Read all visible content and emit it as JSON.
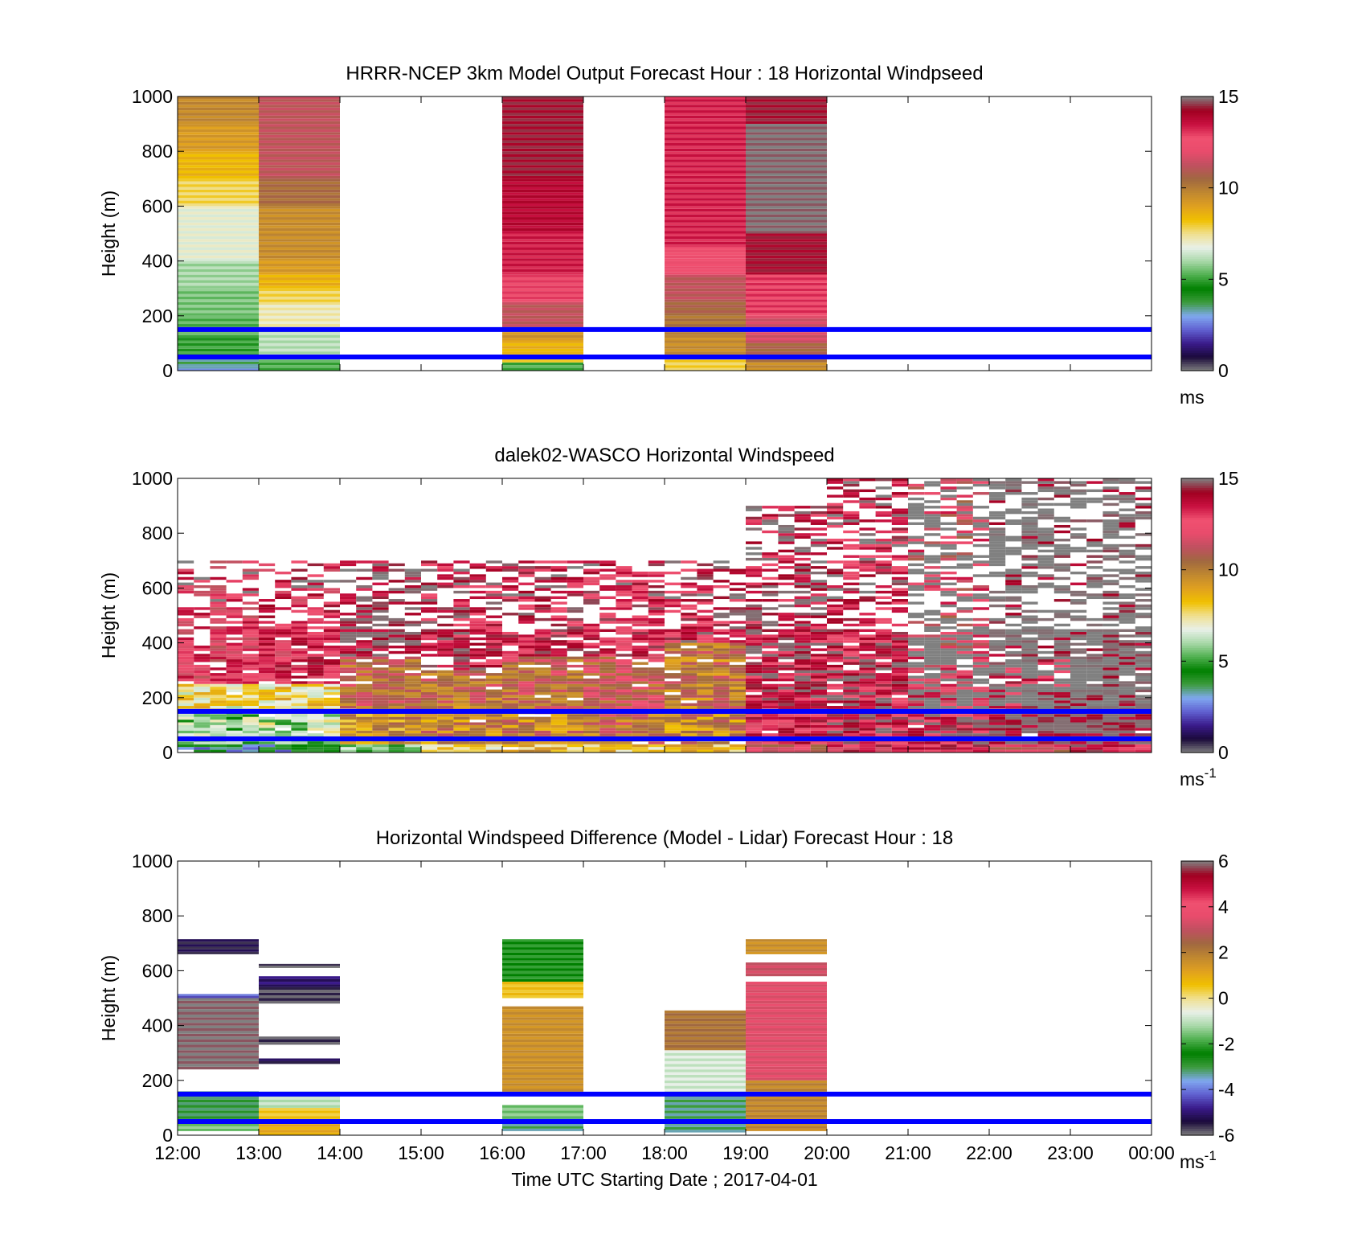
{
  "colors": {
    "reference_line": "#0000ff",
    "speed_colormap": [
      "#808080",
      "#1a0a3a",
      "#3a1a8a",
      "#6060d0",
      "#80a8f0",
      "#3c9b3c",
      "#008000",
      "#50b050",
      "#a8d8a8",
      "#e8f0e8",
      "#f0e090",
      "#f0c000",
      "#e0a020",
      "#c08830",
      "#a06840",
      "#c05060",
      "#e84c6c",
      "#f05070",
      "#c81040",
      "#a00020",
      "#808080"
    ],
    "diff_colormap": [
      "#808080",
      "#1a0a3a",
      "#3a1a8a",
      "#6060d0",
      "#80a8f0",
      "#3c9b3c",
      "#008000",
      "#50b050",
      "#a8d8a8",
      "#e8f0e8",
      "#f0e090",
      "#f0c000",
      "#e0a020",
      "#c08830",
      "#a06840",
      "#c05060",
      "#e84c6c",
      "#f05070",
      "#c81040",
      "#a00020",
      "#808080"
    ]
  },
  "chart_data": [
    {
      "type": "heatmap",
      "title": "HRRR-NCEP 3km Model Output   Forecast Hour : 18 Horizontal Windpseed",
      "xlabel": "",
      "ylabel": "Height (m)",
      "ylim": [
        0,
        1000
      ],
      "y_ticks": [
        "0",
        "200",
        "400",
        "600",
        "800",
        "1000"
      ],
      "x_ticks": [
        "",
        "",
        "",
        "",
        "",
        "",
        "",
        "",
        "",
        "",
        "",
        "",
        ""
      ],
      "xlim_hours": [
        12,
        24
      ],
      "colorbar": {
        "range": [
          0,
          15
        ],
        "ticks": [
          "0",
          "5",
          "10",
          "15"
        ],
        "label": "ms"
      },
      "reference_lines_m": [
        50,
        150
      ],
      "columns": [
        {
          "t0": 12,
          "t1": 13,
          "bins": [
            [
              0,
              15,
              3.0
            ],
            [
              15,
              50,
              3.5
            ],
            [
              50,
              120,
              5.0
            ],
            [
              120,
              200,
              5.3
            ],
            [
              200,
              300,
              5.6
            ],
            [
              300,
              400,
              6.0
            ],
            [
              400,
              600,
              6.8
            ],
            [
              600,
              700,
              7.8
            ],
            [
              700,
              800,
              8.5
            ],
            [
              800,
              900,
              9.2
            ],
            [
              900,
              1000,
              9.7
            ]
          ]
        },
        {
          "t0": 13,
          "t1": 14,
          "bins": [
            [
              0,
              40,
              5.2
            ],
            [
              40,
              150,
              6.2
            ],
            [
              150,
              240,
              7.2
            ],
            [
              240,
              300,
              7.8
            ],
            [
              300,
              350,
              8.6
            ],
            [
              350,
              400,
              9.2
            ],
            [
              400,
              600,
              9.6
            ],
            [
              600,
              700,
              10.4
            ],
            [
              700,
              1000,
              11.2
            ]
          ]
        },
        {
          "t0": 16,
          "t1": 17,
          "bins": [
            [
              0,
              30,
              5.2
            ],
            [
              30,
              70,
              8.3
            ],
            [
              70,
              110,
              8.6
            ],
            [
              110,
              150,
              9.4
            ],
            [
              150,
              250,
              11.2
            ],
            [
              250,
              350,
              12.8
            ],
            [
              350,
              500,
              13.4
            ],
            [
              500,
              700,
              13.8
            ],
            [
              700,
              1000,
              14.3
            ]
          ]
        },
        {
          "t0": 18,
          "t1": 19,
          "bins": [
            [
              0,
              50,
              7.9
            ],
            [
              50,
              130,
              9.6
            ],
            [
              130,
              200,
              10.2
            ],
            [
              200,
              250,
              10.6
            ],
            [
              250,
              350,
              11.2
            ],
            [
              350,
              450,
              12.5
            ],
            [
              450,
              1000,
              13.3
            ]
          ]
        },
        {
          "t0": 19,
          "t1": 20,
          "bins": [
            [
              0,
              30,
              9.6
            ],
            [
              30,
              100,
              10.6
            ],
            [
              100,
              200,
              11.6
            ],
            [
              200,
              350,
              13.0
            ],
            [
              350,
              500,
              14.2
            ],
            [
              500,
              900,
              15.0
            ],
            [
              900,
              1000,
              14.3
            ]
          ]
        }
      ]
    },
    {
      "type": "heatmap",
      "title": "dalek02-WASCO  Horizontal Windspeed",
      "xlabel": "",
      "ylabel": "Height (m)",
      "ylim": [
        0,
        1000
      ],
      "y_ticks": [
        "0",
        "200",
        "400",
        "600",
        "800",
        "1000"
      ],
      "x_ticks": [
        "",
        "",
        "",
        "",
        "",
        "",
        "",
        "",
        "",
        "",
        "",
        "",
        ""
      ],
      "xlim_hours": [
        12,
        24
      ],
      "colorbar": {
        "range": [
          0,
          15
        ],
        "ticks": [
          "0",
          "5",
          "10",
          "15"
        ],
        "label": "ms-1"
      },
      "reference_lines_m": [
        50,
        150
      ],
      "profiles": [
        {
          "t0": 12.0,
          "t1": 13.0,
          "top": 700,
          "bins": [
            [
              0,
              30,
              3.5
            ],
            [
              30,
              150,
              5.8
            ],
            [
              150,
              250,
              7.5
            ],
            [
              250,
              700,
              12.5
            ]
          ]
        },
        {
          "t0": 13.0,
          "t1": 14.0,
          "top": 700,
          "bins": [
            [
              0,
              30,
              3.5
            ],
            [
              30,
              150,
              6.2
            ],
            [
              150,
              250,
              7.8
            ],
            [
              250,
              700,
              13.0
            ]
          ]
        },
        {
          "t0": 14.0,
          "t1": 15.0,
          "top": 700,
          "bins": [
            [
              0,
              30,
              5.2
            ],
            [
              30,
              150,
              9.4
            ],
            [
              150,
              350,
              10.6
            ],
            [
              350,
              700,
              14.6
            ]
          ]
        },
        {
          "t0": 15.0,
          "t1": 16.0,
          "top": 700,
          "bins": [
            [
              0,
              30,
              8.0
            ],
            [
              30,
              150,
              9.8
            ],
            [
              150,
              300,
              10.4
            ],
            [
              300,
              700,
              13.8
            ]
          ]
        },
        {
          "t0": 16.0,
          "t1": 17.0,
          "top": 700,
          "bins": [
            [
              0,
              30,
              8.5
            ],
            [
              30,
              150,
              9.9
            ],
            [
              150,
              350,
              10.8
            ],
            [
              350,
              700,
              13.5
            ]
          ]
        },
        {
          "t0": 17.0,
          "t1": 18.0,
          "top": 700,
          "bins": [
            [
              0,
              30,
              8.3
            ],
            [
              30,
              150,
              10.4
            ],
            [
              150,
              350,
              11.2
            ],
            [
              350,
              700,
              13.2
            ]
          ]
        },
        {
          "t0": 18.0,
          "t1": 19.0,
          "top": 700,
          "bins": [
            [
              0,
              30,
              8.6
            ],
            [
              30,
              150,
              9.7
            ],
            [
              150,
              400,
              10.2
            ],
            [
              400,
              700,
              13.6
            ]
          ]
        },
        {
          "t0": 19.0,
          "t1": 20.0,
          "top": 900,
          "bins": [
            [
              0,
              30,
              11.3
            ],
            [
              30,
              150,
              13.0
            ],
            [
              150,
              350,
              13.8
            ],
            [
              350,
              900,
              14.2
            ]
          ]
        },
        {
          "t0": 20.0,
          "t1": 21.0,
          "top": 1000,
          "bins": [
            [
              0,
              30,
              13.0
            ],
            [
              30,
              150,
              13.8
            ],
            [
              150,
              350,
              14.0
            ],
            [
              350,
              1000,
              13.6
            ]
          ]
        },
        {
          "t0": 21.0,
          "t1": 22.0,
          "top": 1000,
          "bins": [
            [
              0,
              30,
              13.4
            ],
            [
              30,
              150,
              13.8
            ],
            [
              150,
              350,
              12.6
            ],
            [
              350,
              1000,
              12.0
            ]
          ]
        },
        {
          "t0": 22.0,
          "t1": 23.0,
          "top": 1000,
          "bins": [
            [
              0,
              30,
              12.0
            ],
            [
              30,
              150,
              15.0
            ],
            [
              150,
              350,
              13.6
            ],
            [
              350,
              1000,
              15.0
            ]
          ]
        },
        {
          "t0": 23.0,
          "t1": 24.0,
          "top": 1000,
          "bins": [
            [
              0,
              30,
              13.6
            ],
            [
              30,
              150,
              15.0
            ],
            [
              150,
              350,
              15.0
            ],
            [
              350,
              1000,
              15.0
            ]
          ]
        }
      ]
    },
    {
      "type": "heatmap",
      "title": "Horizontal Windspeed Difference (Model - Lidar) Forecast Hour : 18",
      "xlabel": "Time UTC  Starting Date ; 2017-04-01",
      "ylabel": "Height (m)",
      "ylim": [
        0,
        1000
      ],
      "y_ticks": [
        "0",
        "200",
        "400",
        "600",
        "800",
        "1000"
      ],
      "x_ticks": [
        "12:00",
        "13:00",
        "14:00",
        "15:00",
        "16:00",
        "17:00",
        "18:00",
        "19:00",
        "20:00",
        "21:00",
        "22:00",
        "23:00",
        "00:00"
      ],
      "xlim_hours": [
        12,
        24
      ],
      "colorbar": {
        "range": [
          -6,
          6
        ],
        "ticks": [
          "-6",
          "-4",
          "-2",
          "0",
          "2",
          "4",
          "6"
        ],
        "label": "ms-1"
      },
      "reference_lines_m": [
        50,
        150
      ],
      "columns": [
        {
          "t0": 12,
          "t1": 13,
          "bins": [
            [
              15,
              50,
              -1.5
            ],
            [
              50,
              160,
              -3.0
            ],
            [
              240,
              500,
              6.0
            ],
            [
              500,
              515,
              -4.2
            ],
            [
              660,
              715,
              -5.4
            ]
          ]
        },
        {
          "t0": 13,
          "t1": 14,
          "bins": [
            [
              0,
              50,
              1.0
            ],
            [
              50,
              100,
              0.5
            ],
            [
              100,
              160,
              -1.0
            ],
            [
              260,
              280,
              -5.3
            ],
            [
              330,
              360,
              -5.7
            ],
            [
              480,
              540,
              -5.7
            ],
            [
              540,
              580,
              -5.0
            ],
            [
              610,
              625,
              -5.8
            ]
          ]
        },
        {
          "t0": 16,
          "t1": 17,
          "bins": [
            [
              15,
              60,
              -3.2
            ],
            [
              60,
              110,
              -1.5
            ],
            [
              150,
              470,
              1.6
            ],
            [
              500,
              560,
              0.6
            ],
            [
              560,
              715,
              -2.2
            ]
          ]
        },
        {
          "t0": 18,
          "t1": 19,
          "bins": [
            [
              10,
              150,
              -3.2
            ],
            [
              150,
              310,
              -0.8
            ],
            [
              310,
              455,
              2.2
            ]
          ]
        },
        {
          "t0": 19,
          "t1": 20,
          "bins": [
            [
              15,
              200,
              1.8
            ],
            [
              200,
              560,
              3.5
            ],
            [
              580,
              630,
              3.2
            ],
            [
              660,
              715,
              1.6
            ]
          ]
        }
      ]
    }
  ]
}
